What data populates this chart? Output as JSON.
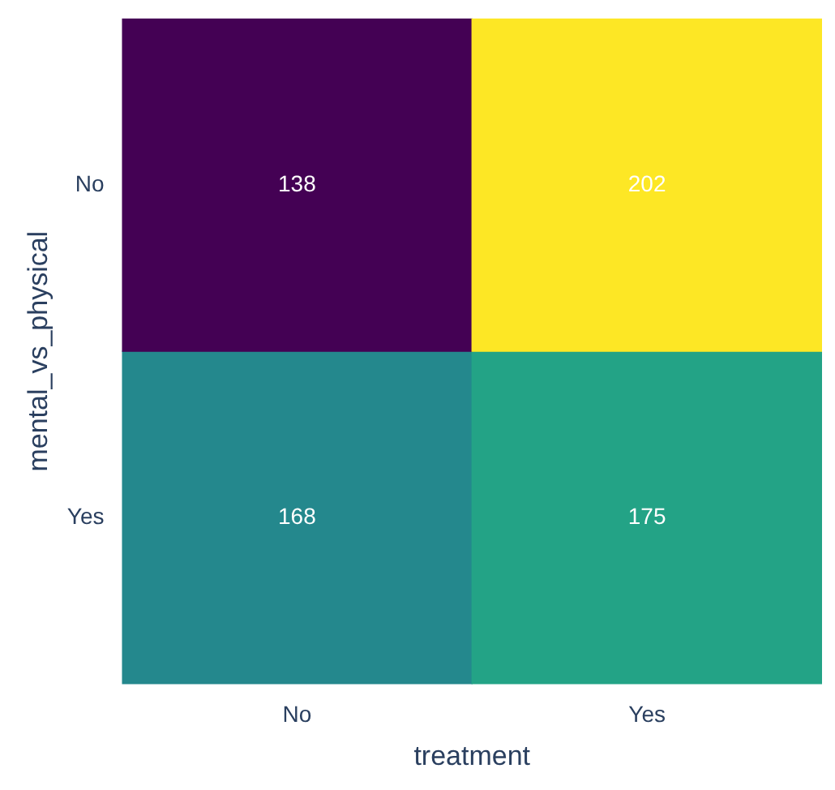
{
  "chart_data": {
    "type": "heatmap",
    "xlabel": "treatment",
    "ylabel": "mental_vs_physical",
    "categories": [
      "No",
      "Yes"
    ],
    "y_categories": [
      "No",
      "Yes"
    ],
    "cells": [
      [
        138,
        202
      ],
      [
        168,
        175
      ]
    ],
    "data_labels": true
  }
}
